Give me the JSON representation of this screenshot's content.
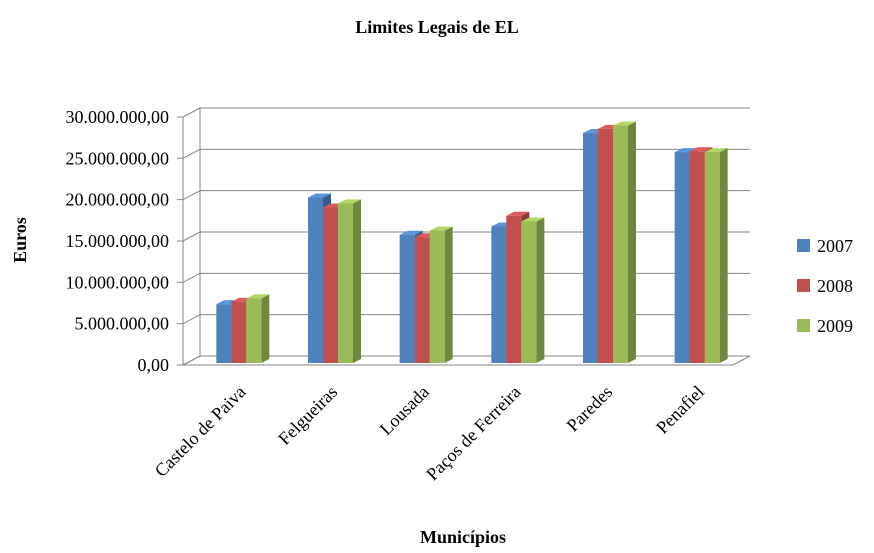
{
  "chart_data": {
    "type": "bar",
    "title": "Limites Legais de EL",
    "xlabel": "Municípios",
    "ylabel": "Euros",
    "categories": [
      "Castelo de Paiva",
      "Felgueiras",
      "Lousada",
      "Paços de Ferreira",
      "Paredes",
      "Penafiel"
    ],
    "series": [
      {
        "name": "2007",
        "color": "#4F81BD",
        "values": [
          7600000,
          20500000,
          16000000,
          17000000,
          28300000,
          26000000
        ]
      },
      {
        "name": "2008",
        "color": "#C0504D",
        "values": [
          7900000,
          19300000,
          15700000,
          18300000,
          28800000,
          26100000
        ]
      },
      {
        "name": "2009",
        "color": "#9BBB59",
        "values": [
          8300000,
          19800000,
          16500000,
          17600000,
          29200000,
          26000000
        ]
      }
    ],
    "y_ticks": [
      "0,00",
      "5.000.000,00",
      "10.000.000,00",
      "15.000.000,00",
      "20.000.000,00",
      "25.000.000,00",
      "30.000.000,00"
    ],
    "ylim": [
      0,
      30000000
    ],
    "grid": true,
    "legend_position": "right"
  }
}
